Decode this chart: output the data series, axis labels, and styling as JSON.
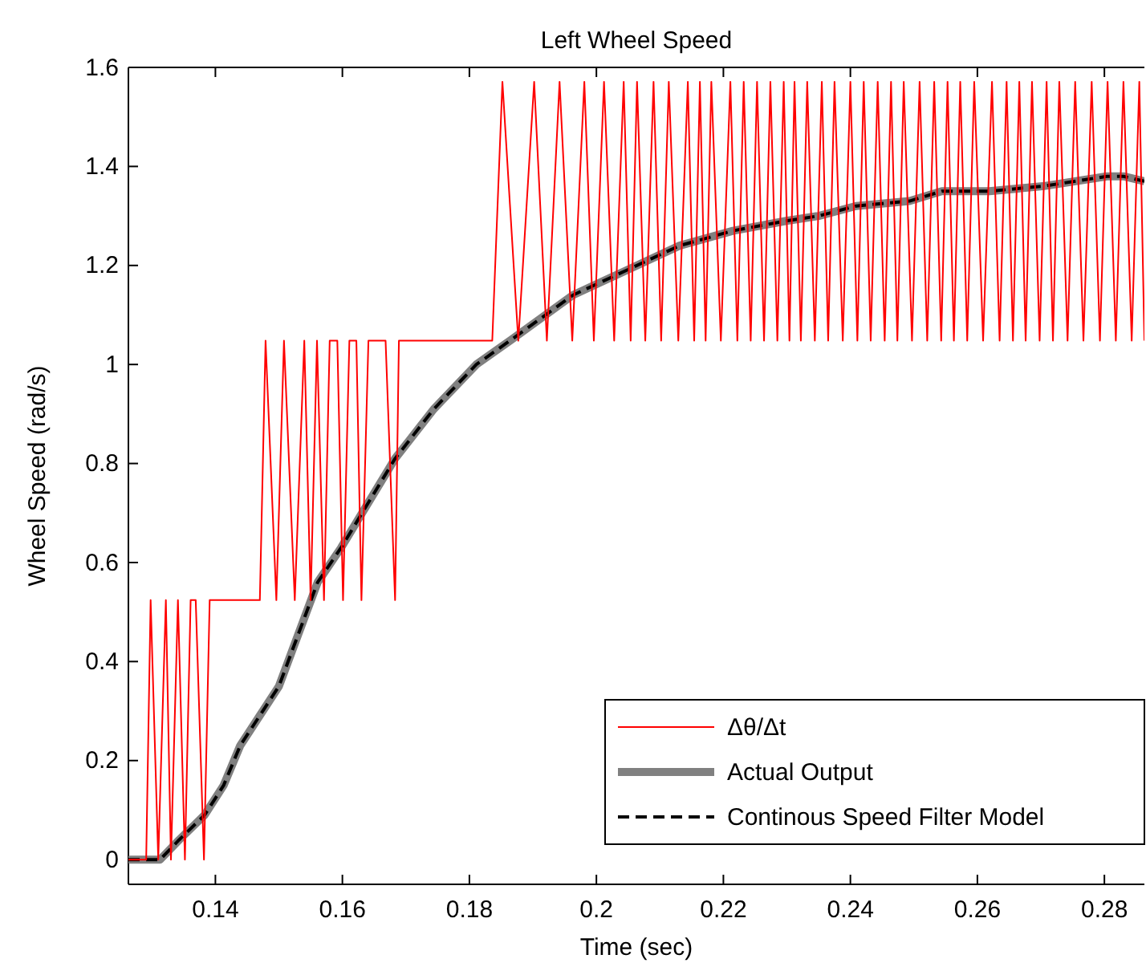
{
  "chart_data": {
    "type": "line",
    "title": "Left Wheel Speed",
    "xlabel": "Time (sec)",
    "ylabel": "Wheel Speed (rad/s)",
    "xlim": [
      0.1263,
      0.2863
    ],
    "ylim": [
      -0.05,
      1.6
    ],
    "xticks": [
      0.14,
      0.16,
      0.18,
      0.2,
      0.22,
      0.24,
      0.26,
      0.28
    ],
    "yticks": [
      0,
      0.2,
      0.4,
      0.6,
      0.8,
      1,
      1.2,
      1.4,
      1.6
    ],
    "grid": false,
    "legend": "bottom right",
    "marker": "none",
    "series": [
      {
        "name": "Δθ/Δt",
        "color": "#ff0000",
        "line_style": "solid",
        "x": [
          0.1263,
          0.1291,
          0.1298,
          0.131,
          0.1322,
          0.133,
          0.1341,
          0.1352,
          0.1361,
          0.1369,
          0.1382,
          0.1391,
          0.147,
          0.1479,
          0.1496,
          0.1508,
          0.1525,
          0.154,
          0.155,
          0.156,
          0.1571,
          0.158,
          0.1592,
          0.1601,
          0.1611,
          0.1622,
          0.163,
          0.1641,
          0.1668,
          0.1683,
          0.1689,
          0.1836,
          0.1852,
          0.1877,
          0.1902,
          0.1922,
          0.1942,
          0.1962,
          0.1981,
          0.1996,
          0.2012,
          0.2028,
          0.2043,
          0.2054,
          0.2064,
          0.2077,
          0.209,
          0.2102,
          0.2114,
          0.2129,
          0.2144,
          0.2154,
          0.2163,
          0.2172,
          0.2181,
          0.2196,
          0.2211,
          0.2222,
          0.2232,
          0.2243,
          0.2253,
          0.2264,
          0.2274,
          0.2285,
          0.2295,
          0.2304,
          0.2312,
          0.2322,
          0.2332,
          0.2344,
          0.2355,
          0.2365,
          0.2375,
          0.2388,
          0.24,
          0.2411,
          0.2421,
          0.2432,
          0.2443,
          0.2454,
          0.2464,
          0.2474,
          0.2484,
          0.2497,
          0.2509,
          0.2521,
          0.2532,
          0.2543,
          0.2553,
          0.2563,
          0.2573,
          0.2584,
          0.2595,
          0.2609,
          0.2623,
          0.2635,
          0.2646,
          0.2656,
          0.2666,
          0.2676,
          0.2686,
          0.2698,
          0.2709,
          0.2719,
          0.2729,
          0.2742,
          0.2754,
          0.2767,
          0.278,
          0.2793,
          0.2805,
          0.2818,
          0.283,
          0.2843,
          0.2855,
          0.2863
        ],
        "values": [
          0,
          0,
          0.524,
          0,
          0.524,
          0,
          0.524,
          0,
          0.524,
          0.524,
          0,
          0.524,
          0.524,
          1.048,
          0.524,
          1.048,
          0.524,
          1.048,
          0.524,
          1.048,
          0.524,
          1.048,
          1.048,
          0.524,
          1.048,
          1.048,
          0.524,
          1.048,
          1.048,
          0.524,
          1.048,
          1.048,
          1.571,
          1.048,
          1.571,
          1.048,
          1.571,
          1.048,
          1.571,
          1.048,
          1.571,
          1.048,
          1.571,
          1.048,
          1.571,
          1.048,
          1.571,
          1.048,
          1.571,
          1.048,
          1.571,
          1.048,
          1.571,
          1.048,
          1.571,
          1.048,
          1.571,
          1.048,
          1.571,
          1.048,
          1.571,
          1.048,
          1.571,
          1.048,
          1.571,
          1.048,
          1.571,
          1.048,
          1.571,
          1.048,
          1.571,
          1.048,
          1.571,
          1.048,
          1.571,
          1.048,
          1.571,
          1.048,
          1.571,
          1.048,
          1.571,
          1.048,
          1.571,
          1.048,
          1.571,
          1.048,
          1.571,
          1.048,
          1.571,
          1.048,
          1.571,
          1.048,
          1.571,
          1.048,
          1.571,
          1.048,
          1.571,
          1.048,
          1.571,
          1.048,
          1.571,
          1.048,
          1.571,
          1.048,
          1.571,
          1.048,
          1.571,
          1.048,
          1.571,
          1.048,
          1.571,
          1.048,
          1.571,
          1.048,
          1.571,
          1.048
        ]
      },
      {
        "name": "Actual Output",
        "color": "#808080",
        "line_style": "solid",
        "x": [
          0.1263,
          0.1313,
          0.1343,
          0.1383,
          0.1413,
          0.1439,
          0.15,
          0.1561,
          0.1598,
          0.1683,
          0.1744,
          0.1811,
          0.1866,
          0.1963,
          0.2047,
          0.2131,
          0.2215,
          0.2299,
          0.235,
          0.2409,
          0.2493,
          0.2544,
          0.2619,
          0.2703,
          0.2804,
          0.283,
          0.2863
        ],
        "values": [
          0,
          0,
          0.04,
          0.09,
          0.15,
          0.23,
          0.35,
          0.56,
          0.63,
          0.81,
          0.91,
          1.0,
          1.05,
          1.14,
          1.19,
          1.24,
          1.27,
          1.29,
          1.3,
          1.32,
          1.33,
          1.35,
          1.35,
          1.36,
          1.38,
          1.38,
          1.37
        ]
      },
      {
        "name": "Continous Speed Filter Model",
        "color": "#000000",
        "line_style": "dashed",
        "x": [
          0.1263,
          0.1313,
          0.1343,
          0.1383,
          0.1413,
          0.1439,
          0.15,
          0.1561,
          0.1598,
          0.1683,
          0.1744,
          0.1811,
          0.1866,
          0.1963,
          0.2047,
          0.2131,
          0.2215,
          0.2299,
          0.235,
          0.2409,
          0.2493,
          0.2544,
          0.2619,
          0.2703,
          0.2804,
          0.283,
          0.2863
        ],
        "values": [
          0,
          0,
          0.04,
          0.09,
          0.15,
          0.23,
          0.35,
          0.56,
          0.63,
          0.81,
          0.91,
          1.0,
          1.05,
          1.14,
          1.19,
          1.24,
          1.27,
          1.29,
          1.3,
          1.32,
          1.33,
          1.35,
          1.35,
          1.36,
          1.38,
          1.38,
          1.37
        ]
      }
    ]
  }
}
